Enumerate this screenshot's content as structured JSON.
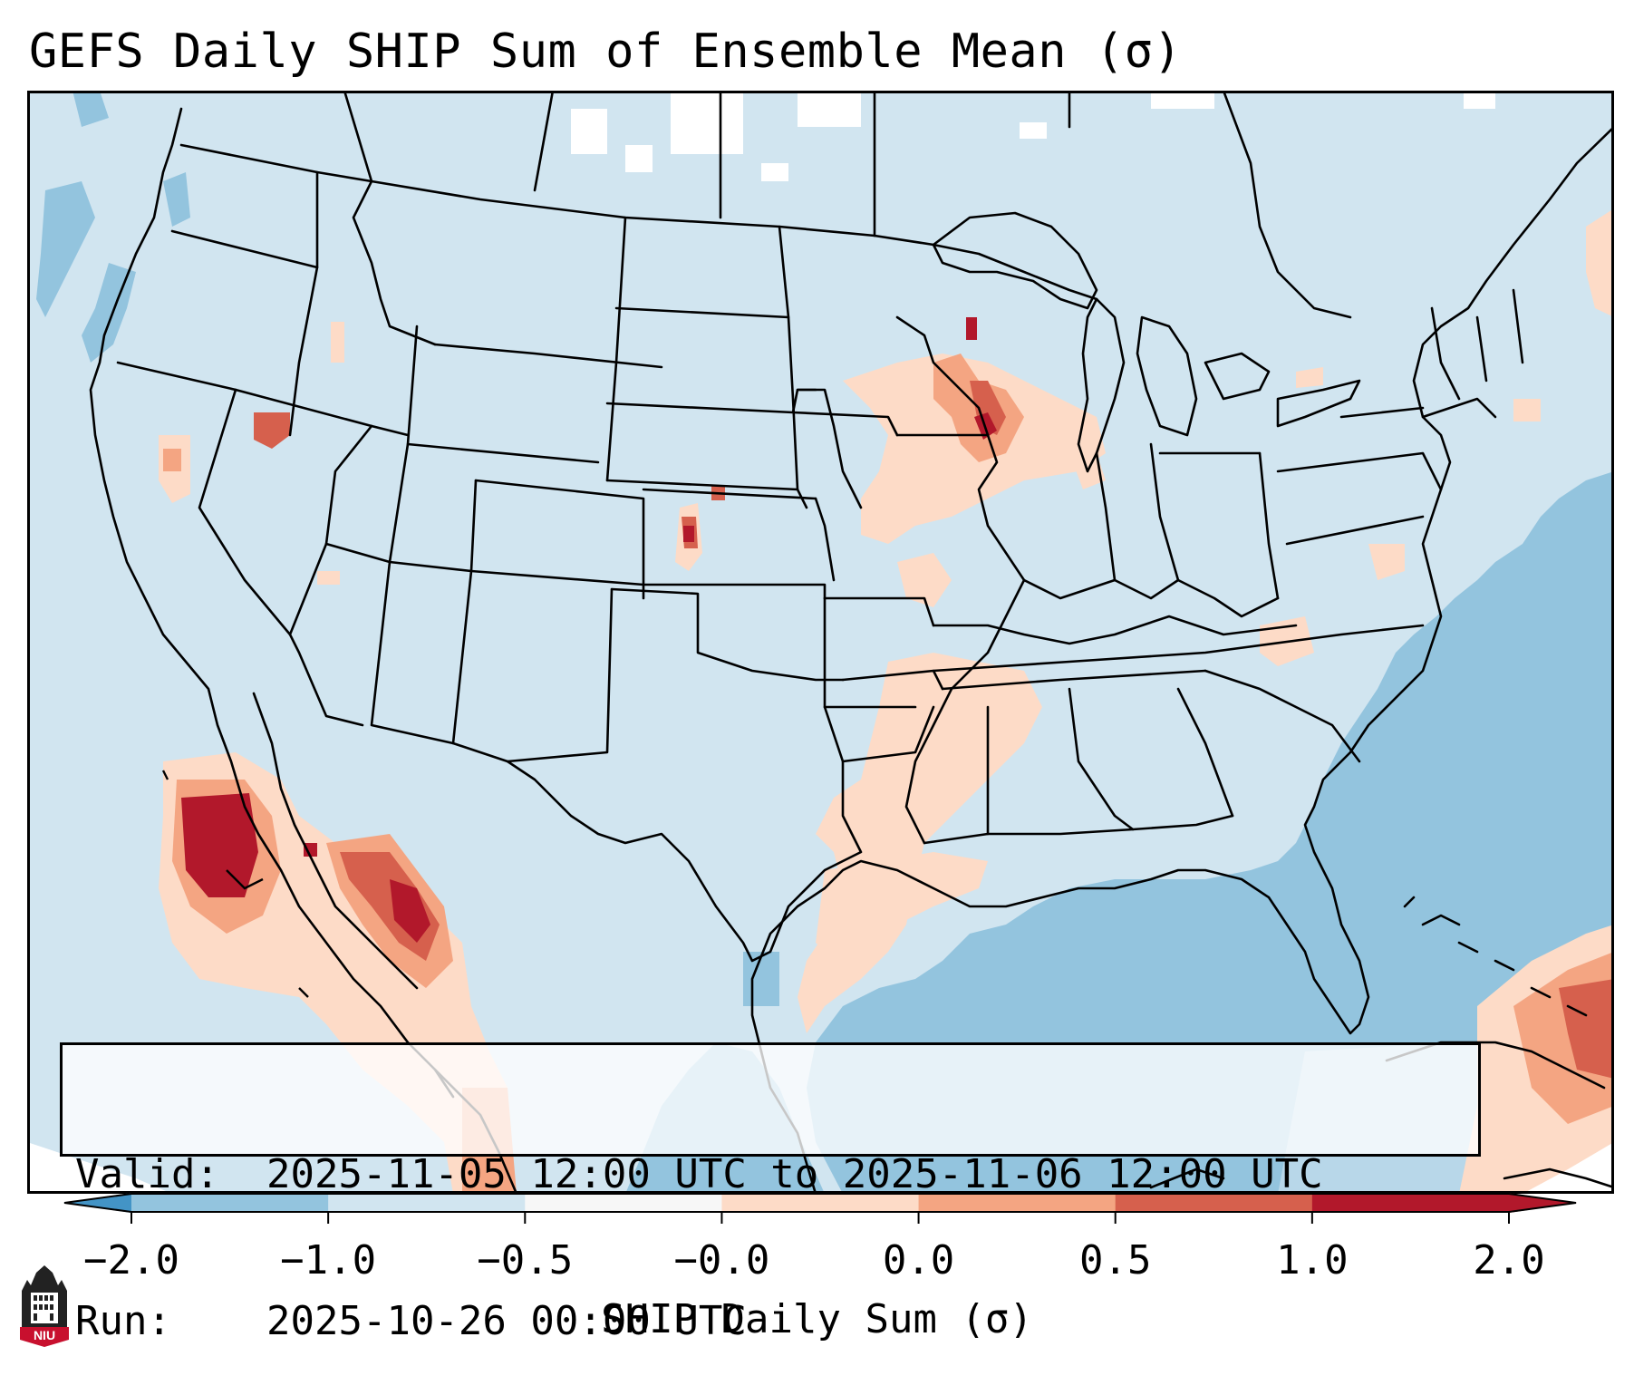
{
  "title": "GEFS Daily SHIP Sum of Ensemble Mean (σ)",
  "info": {
    "valid_key": "Valid:",
    "valid_value": "2025-11-05 12:00 UTC to 2025-11-06 12:00 UTC",
    "run_key": "Run:",
    "run_value": "2025-10-26 00:00 UTC"
  },
  "colorbar": {
    "label": "SHIP Daily Sum (σ)",
    "ticks": [
      "−2.0",
      "−1.0",
      "−0.5",
      "−0.0",
      "0.0",
      "0.5",
      "1.0",
      "2.0"
    ],
    "colors": [
      "#4394c6",
      "#93c4de",
      "#d1e5f0",
      "#f7f7f7",
      "#fddbc7",
      "#f4a582",
      "#d6604d",
      "#b2182b"
    ],
    "extend": "both"
  },
  "map": {
    "background_color": "#d1e5f0",
    "ocean_anomaly_color": "#93c4de",
    "positive_weak_color": "#fddbc7",
    "positive_mid_color": "#f4a582",
    "positive_strong_color": "#d6604d",
    "positive_max_color": "#b2182b"
  },
  "logo": {
    "text": "NIU",
    "icon": "university-tower-icon"
  }
}
